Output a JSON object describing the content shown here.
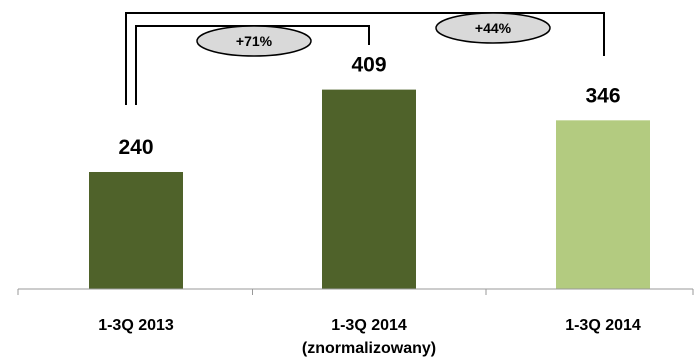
{
  "chart_data": {
    "type": "bar",
    "categories": [
      [
        "1-3Q 2013"
      ],
      [
        "1-3Q 2014",
        "(znormalizowany)"
      ],
      [
        "1-3Q 2014"
      ]
    ],
    "values": [
      240,
      409,
      346
    ],
    "bar_colors": [
      "#4f622a",
      "#4f622a",
      "#b3cb80"
    ],
    "ylim": [
      0,
      500
    ],
    "grid": false,
    "annotations": [
      {
        "text": "+71%",
        "from_index": 0,
        "to_index": 1
      },
      {
        "text": "+44%",
        "from_index": 0,
        "to_index": 2
      }
    ],
    "title": "",
    "xlabel": "",
    "ylabel": ""
  }
}
